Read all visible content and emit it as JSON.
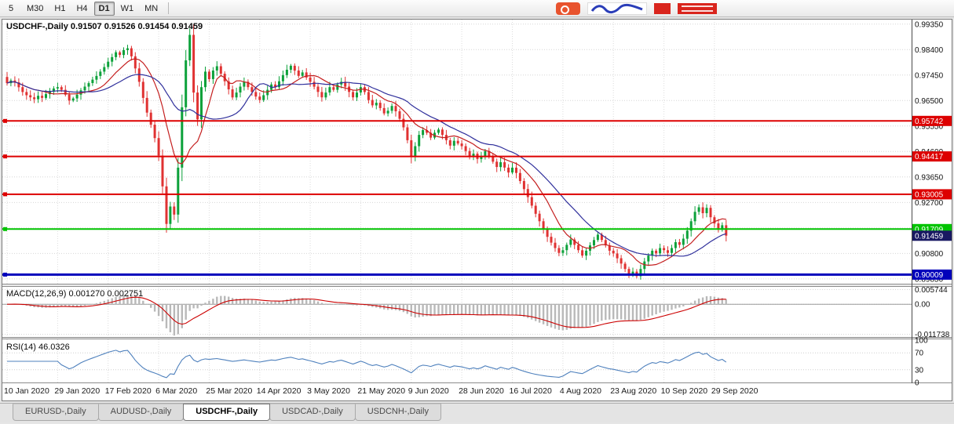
{
  "toolbar": {
    "timeframes": [
      {
        "label": "5",
        "active": false
      },
      {
        "label": "M30",
        "active": false
      },
      {
        "label": "H1",
        "active": false
      },
      {
        "label": "H4",
        "active": false
      },
      {
        "label": "D1",
        "active": true
      },
      {
        "label": "W1",
        "active": false
      },
      {
        "label": "MN",
        "active": false
      }
    ]
  },
  "logo": {
    "badge_color": "#e8532e",
    "wordmark_color": "#2a3db8",
    "block_color": "#d9251d"
  },
  "chart_data": [
    {
      "type": "candlestick",
      "title": "USDCHF-,Daily",
      "ohlc_text": "0.91507 0.91526 0.91454 0.91459",
      "open": 0.91507,
      "high": 0.91526,
      "low": 0.91454,
      "close": 0.91459,
      "x_tick_labels": [
        "10 Jan 2020",
        "29 Jan 2020",
        "17 Feb 2020",
        "6 Mar 2020",
        "25 Mar 2020",
        "14 Apr 2020",
        "3 May 2020",
        "21 May 2020",
        "9 Jun 2020",
        "28 Jun 2020",
        "16 Jul 2020",
        "4 Aug 2020",
        "23 Aug 2020",
        "10 Sep 2020",
        "29 Sep 2020"
      ],
      "bars_per_x_tick": 13,
      "y_tick_labels": [
        "0.99350",
        "0.98400",
        "0.97450",
        "0.96500",
        "0.95550",
        "0.94600",
        "0.93650",
        "0.92700",
        "0.91750",
        "0.90800",
        "0.89850"
      ],
      "y_range": [
        0.897,
        0.9952
      ],
      "first_open": 0.9738,
      "closes": [
        0.9715,
        0.9725,
        0.9718,
        0.97,
        0.9682,
        0.967,
        0.9662,
        0.9655,
        0.9668,
        0.966,
        0.9674,
        0.9683,
        0.9695,
        0.97,
        0.969,
        0.9672,
        0.965,
        0.9658,
        0.9672,
        0.9688,
        0.9702,
        0.9715,
        0.9728,
        0.9742,
        0.9758,
        0.9775,
        0.9795,
        0.9812,
        0.983,
        0.982,
        0.9838,
        0.9845,
        0.9815,
        0.977,
        0.972,
        0.966,
        0.9605,
        0.956,
        0.951,
        0.9445,
        0.933,
        0.919,
        0.9255,
        0.9225,
        0.94,
        0.9625,
        0.98,
        0.9895,
        0.968,
        0.958,
        0.97,
        0.9758,
        0.973,
        0.9762,
        0.9778,
        0.975,
        0.9722,
        0.9692,
        0.9662,
        0.968,
        0.9702,
        0.972,
        0.97,
        0.9682,
        0.9665,
        0.9652,
        0.967,
        0.969,
        0.971,
        0.97,
        0.9722,
        0.9745,
        0.9765,
        0.978,
        0.9762,
        0.9742,
        0.9755,
        0.9736,
        0.972,
        0.9702,
        0.9682,
        0.9662,
        0.968,
        0.97,
        0.969,
        0.971,
        0.972,
        0.9702,
        0.9682,
        0.9662,
        0.968,
        0.97,
        0.9682,
        0.9652,
        0.9632,
        0.9642,
        0.9622,
        0.9602,
        0.9612,
        0.963,
        0.961,
        0.9582,
        0.955,
        0.9502,
        0.9442,
        0.948,
        0.9522,
        0.954,
        0.953,
        0.9512,
        0.953,
        0.9542,
        0.9522,
        0.9502,
        0.9482,
        0.95,
        0.949,
        0.948,
        0.9462,
        0.9442,
        0.9452,
        0.9432,
        0.9442,
        0.9462,
        0.9442,
        0.9422,
        0.9402,
        0.942,
        0.94,
        0.9382,
        0.94,
        0.938,
        0.935,
        0.932,
        0.929,
        0.9258,
        0.9228,
        0.92,
        0.9172,
        0.9142,
        0.912,
        0.91,
        0.9082,
        0.9092,
        0.9112,
        0.9132,
        0.9112,
        0.9092,
        0.9072,
        0.909,
        0.911,
        0.913,
        0.915,
        0.913,
        0.911,
        0.909,
        0.908,
        0.9062,
        0.9042,
        0.9022,
        0.9002,
        0.9012,
        0.8995,
        0.9022,
        0.905,
        0.9072,
        0.909,
        0.908,
        0.91,
        0.9092,
        0.9082,
        0.91,
        0.9122,
        0.9112,
        0.9135,
        0.9165,
        0.92,
        0.9235,
        0.9252,
        0.923,
        0.925,
        0.9215,
        0.9192,
        0.9168,
        0.9185,
        0.9146
      ],
      "moving_averages": [
        {
          "period": 10,
          "color": "#c41e1e"
        },
        {
          "period": 21,
          "color": "#30309c"
        }
      ],
      "hlines": [
        {
          "value": 0.95742,
          "label": "0.95742",
          "color": "#dd0000",
          "width": 2
        },
        {
          "value": 0.94417,
          "label": "0.94417",
          "color": "#dd0000",
          "width": 2
        },
        {
          "value": 0.93005,
          "label": "0.93005",
          "color": "#dd0000",
          "width": 2
        },
        {
          "value": 0.91709,
          "label": "0.91709",
          "color": "#00c400",
          "width": 2
        },
        {
          "value": 0.90009,
          "label": "0.90009",
          "color": "#0000bb",
          "width": 3
        }
      ],
      "current_price": {
        "value": 0.91459,
        "label": "0.91459",
        "label_bg": "#181862"
      },
      "bull_color": "#0ca13a",
      "bear_color": "#e03232",
      "grid": true,
      "legend_position": "top-left"
    },
    {
      "type": "macd",
      "label": "MACD(12,26,9) 0.001270 0.002751",
      "fast": 12,
      "slow": 26,
      "signal": 9,
      "main_value": 0.00127,
      "signal_value": 0.002751,
      "y_tick_labels": [
        "0.005744",
        "0.00",
        "-0.011738"
      ],
      "y_tick_values": [
        0.005744,
        0,
        -0.011738
      ],
      "y_range": [
        -0.0125,
        0.0065
      ],
      "histogram_color": "#b9b9b9",
      "signal_color": "#cc0000"
    },
    {
      "type": "rsi",
      "label": "RSI(14) 46.0326",
      "period": 14,
      "value": 46.0326,
      "levels": [
        100,
        70,
        30,
        0
      ],
      "y_range": [
        0,
        100
      ],
      "line_color": "#4f81bd"
    }
  ],
  "tabs": [
    {
      "label": "EURUSD-,Daily",
      "active": false
    },
    {
      "label": "AUDUSD-,Daily",
      "active": false
    },
    {
      "label": "USDCHF-,Daily",
      "active": true
    },
    {
      "label": "USDCAD-,Daily",
      "active": false
    },
    {
      "label": "USDCNH-,Daily",
      "active": false
    }
  ]
}
